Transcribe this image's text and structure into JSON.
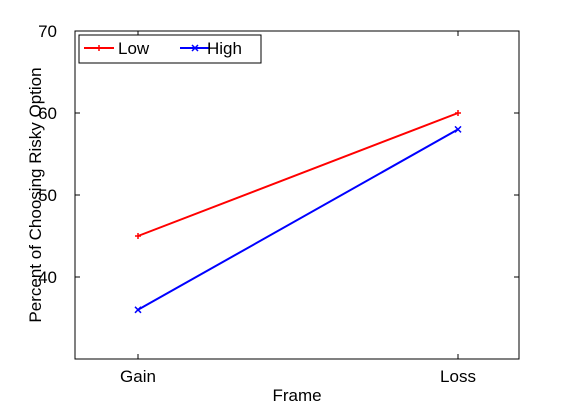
{
  "chart_data": {
    "type": "line",
    "categories": [
      "Gain",
      "Loss"
    ],
    "series": [
      {
        "name": "Low",
        "values": [
          45,
          60
        ],
        "color": "#ff0000",
        "marker": "+"
      },
      {
        "name": "High",
        "values": [
          36,
          58
        ],
        "color": "#0000ff",
        "marker": "x"
      }
    ],
    "xlabel": "Frame",
    "ylabel": "Percent of Choosing Risky Option",
    "ylim": [
      30,
      70
    ],
    "yticks": [
      40,
      50,
      60,
      70
    ],
    "grid": false,
    "legend_placement": "top-left"
  }
}
